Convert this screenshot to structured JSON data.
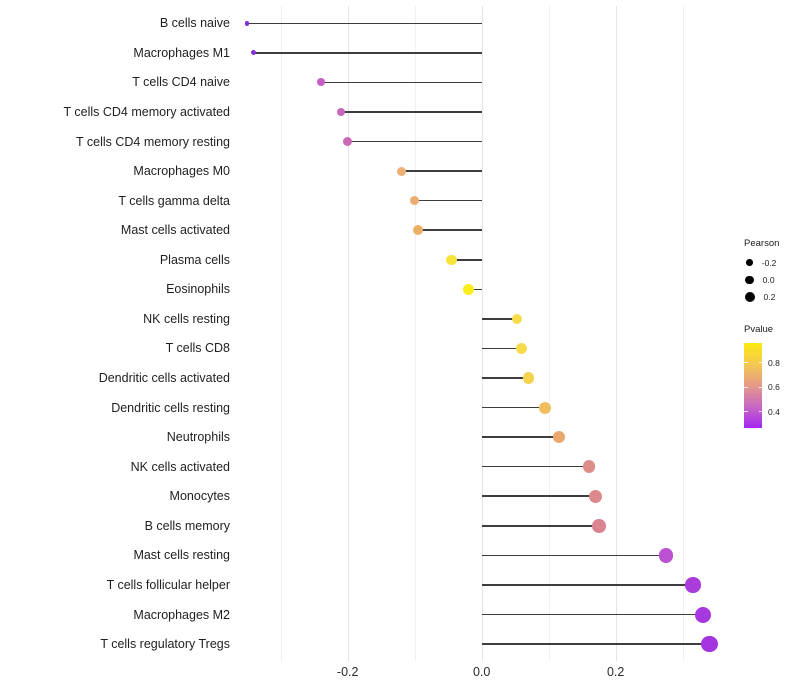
{
  "figure": {
    "background": "#ffffff",
    "title": ""
  },
  "chart_data": {
    "type": "lollipop",
    "orientation": "horizontal",
    "title": "",
    "xlabel": "",
    "ylabel": "",
    "x_axis": {
      "range": [
        -0.37,
        0.38
      ],
      "major_ticks": [
        -0.2,
        0.0,
        0.2
      ],
      "tick_labels": [
        "-0.2",
        "0.0",
        "0.2"
      ],
      "minor_gridlines": [
        -0.3,
        -0.1,
        0.1,
        0.3
      ],
      "grid": true
    },
    "stem_color": "#3d3d3d",
    "baseline_value": 0.0,
    "points": [
      {
        "label": "B cells naive",
        "pearson": -0.35,
        "pvalue": 0.3,
        "color": "#8430DB",
        "size": 4.5
      },
      {
        "label": "Macrophages M1",
        "pearson": -0.34,
        "pvalue": 0.31,
        "color": "#8531DA",
        "size": 5
      },
      {
        "label": "T cells CD4 naive",
        "pearson": -0.24,
        "pvalue": 0.46,
        "color": "#C55DC2",
        "size": 8
      },
      {
        "label": "T cells CD4 memory activated",
        "pearson": -0.21,
        "pvalue": 0.48,
        "color": "#C966BA",
        "size": 8.5
      },
      {
        "label": "T cells CD4 memory resting",
        "pearson": -0.2,
        "pvalue": 0.49,
        "color": "#CB69B6",
        "size": 9
      },
      {
        "label": "Macrophages M0",
        "pearson": -0.12,
        "pvalue": 0.7,
        "color": "#EDB077",
        "size": 9
      },
      {
        "label": "T cells gamma delta",
        "pearson": -0.1,
        "pvalue": 0.69,
        "color": "#EBAC71",
        "size": 9.5
      },
      {
        "label": "Mast cells activated",
        "pearson": -0.095,
        "pvalue": 0.71,
        "color": "#EDAF66",
        "size": 10
      },
      {
        "label": "Plasma cells",
        "pearson": -0.045,
        "pvalue": 0.87,
        "color": "#F6E43A",
        "size": 10.5
      },
      {
        "label": "Eosinophils",
        "pearson": -0.02,
        "pvalue": 0.93,
        "color": "#F9EE1C",
        "size": 11
      },
      {
        "label": "NK cells resting",
        "pearson": 0.053,
        "pvalue": 0.83,
        "color": "#F6DC4B",
        "size": 10.5
      },
      {
        "label": "T cells CD8",
        "pearson": 0.06,
        "pvalue": 0.82,
        "color": "#F5DA4E",
        "size": 11
      },
      {
        "label": "Dendritic cells activated",
        "pearson": 0.07,
        "pvalue": 0.8,
        "color": "#F4D351",
        "size": 11.5
      },
      {
        "label": "Dendritic cells resting",
        "pearson": 0.095,
        "pvalue": 0.71,
        "color": "#F0BE61",
        "size": 12
      },
      {
        "label": "Neutrophils",
        "pearson": 0.115,
        "pvalue": 0.65,
        "color": "#E9A96E",
        "size": 12.5
      },
      {
        "label": "NK cells activated",
        "pearson": 0.16,
        "pvalue": 0.57,
        "color": "#DE8E88",
        "size": 12.5
      },
      {
        "label": "Monocytes",
        "pearson": 0.17,
        "pvalue": 0.56,
        "color": "#DC898D",
        "size": 13
      },
      {
        "label": "B cells memory",
        "pearson": 0.175,
        "pvalue": 0.54,
        "color": "#DA8492",
        "size": 13.5
      },
      {
        "label": "Mast cells resting",
        "pearson": 0.275,
        "pvalue": 0.43,
        "color": "#BC51D1",
        "size": 14.5
      },
      {
        "label": "T cells follicular helper",
        "pearson": 0.315,
        "pvalue": 0.36,
        "color": "#AA3CDB",
        "size": 15.5
      },
      {
        "label": "Macrophages M2",
        "pearson": 0.33,
        "pvalue": 0.34,
        "color": "#A737DE",
        "size": 16
      },
      {
        "label": "T cells regulatory  Tregs",
        "pearson": 0.34,
        "pvalue": 0.33,
        "color": "#A434DF",
        "size": 16.5
      }
    ]
  },
  "legend": {
    "size": {
      "title": "Pearson",
      "dot_color": "#000000",
      "items": [
        {
          "label": "-0.2",
          "diameter": 6.5
        },
        {
          "label": "0.0",
          "diameter": 8.5
        },
        {
          "label": "0.2",
          "diameter": 10
        }
      ]
    },
    "color": {
      "title": "Pvalue",
      "tick_values": [
        0.8,
        0.6,
        0.4
      ],
      "tick_labels": [
        "0.8",
        "0.6",
        "0.4"
      ],
      "domain": [
        0.96,
        0.26
      ],
      "gradient_stops": [
        "#FBEA12",
        "#F4C851",
        "#E59A87",
        "#C767C5",
        "#A228EE"
      ]
    }
  }
}
